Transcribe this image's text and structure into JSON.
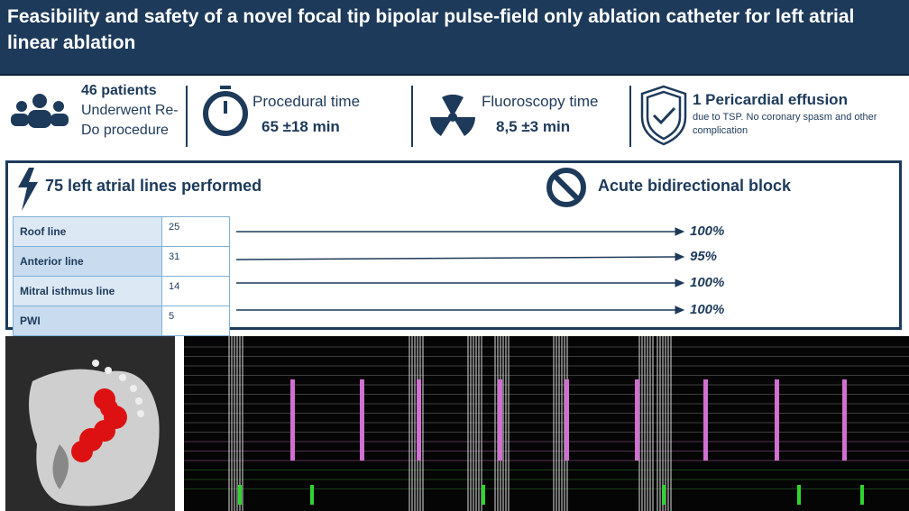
{
  "header": {
    "title": "Feasibility and safety of a novel focal tip bipolar pulse-field only ablation catheter for left atrial linear ablation"
  },
  "stats": [
    {
      "headline": "46 patients",
      "detail": "Underwent Re-Do procedure"
    },
    {
      "headline": "Procedural time",
      "detail": "65 ±18 min"
    },
    {
      "headline": "Fluoroscopy time",
      "detail": "8,5 ±3 min"
    },
    {
      "headline": "1 Pericardial effusion",
      "detail": "due to TSP. No coronary spasm and other complication"
    }
  ],
  "lines_section": {
    "title": "75 left atrial lines performed",
    "block_title": "Acute bidirectional block",
    "table": {
      "rows": [
        [
          "Roof line",
          "25",
          "100%"
        ],
        [
          "Anterior line",
          "31",
          "95%"
        ],
        [
          "Mitral isthmus line",
          "14",
          "100%"
        ],
        [
          "PWI",
          "5",
          "100%"
        ]
      ]
    }
  }
}
